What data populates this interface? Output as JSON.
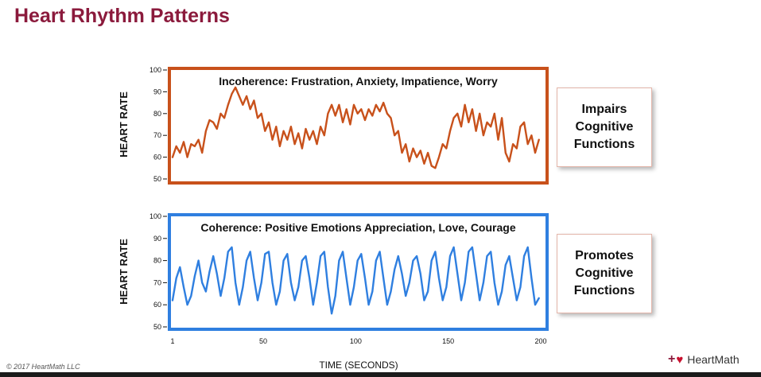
{
  "page": {
    "title": "Heart Rhythm Patterns",
    "copyright": "© 2017 HeartMath LLC",
    "brand": {
      "plus": "+",
      "name": "HeartMath"
    },
    "colors": {
      "title": "#8b1a3c",
      "incoherence": "#c8511b",
      "coherence": "#2f7fe0"
    }
  },
  "callouts": {
    "incoherence": [
      "Impairs",
      "Cognitive",
      "Functions"
    ],
    "coherence": [
      "Promotes",
      "Cognitive",
      "Functions"
    ]
  },
  "chart_data": [
    {
      "type": "line",
      "title": "Incoherence: Frustration, Anxiety, Impatience, Worry",
      "ylabel": "HEART RATE",
      "xlabel": "",
      "ylim": [
        50,
        100
      ],
      "xlim": [
        1,
        200
      ],
      "yticks": [
        "100",
        "90",
        "80",
        "70",
        "60",
        "50"
      ],
      "xticks": [],
      "grid": false,
      "series": [
        {
          "x": [
            1,
            3,
            5,
            7,
            9,
            11,
            13,
            15,
            17,
            19,
            21,
            23,
            25,
            27,
            29,
            31,
            33,
            35,
            37,
            39,
            41,
            43,
            45,
            47,
            49,
            51,
            53,
            55,
            57,
            59,
            61,
            63,
            65,
            67,
            69,
            71,
            73,
            75,
            77,
            79,
            81,
            83,
            85,
            87,
            89,
            91,
            93,
            95,
            97,
            99,
            101,
            103,
            105,
            107,
            109,
            111,
            113,
            115,
            117,
            119,
            121,
            123,
            125,
            127,
            129,
            131,
            133,
            135,
            137,
            139,
            141,
            143,
            145,
            147,
            149,
            151,
            153,
            155,
            157,
            159,
            161,
            163,
            165,
            167,
            169,
            171,
            173,
            175,
            177,
            179,
            181,
            183,
            185,
            187,
            189,
            191,
            193,
            195,
            197,
            199
          ],
          "values": [
            60,
            65,
            62,
            67,
            60,
            66,
            65,
            68,
            62,
            72,
            77,
            76,
            73,
            80,
            78,
            84,
            89,
            92,
            88,
            84,
            88,
            82,
            86,
            78,
            80,
            72,
            76,
            68,
            74,
            65,
            72,
            68,
            74,
            66,
            71,
            64,
            73,
            68,
            72,
            66,
            74,
            70,
            80,
            84,
            79,
            84,
            76,
            82,
            75,
            84,
            80,
            82,
            77,
            82,
            79,
            84,
            81,
            85,
            80,
            78,
            70,
            72,
            62,
            66,
            58,
            64,
            60,
            63,
            57,
            62,
            56,
            55,
            60,
            66,
            64,
            72,
            78,
            80,
            74,
            84,
            76,
            82,
            72,
            80,
            70,
            76,
            74,
            80,
            68,
            78,
            62,
            58,
            66,
            64,
            74,
            76,
            66,
            70,
            62,
            68
          ]
        }
      ]
    },
    {
      "type": "line",
      "title": "Coherence: Positive Emotions Appreciation, Love, Courage",
      "ylabel": "HEART RATE",
      "xlabel": "TIME (SECONDS)",
      "ylim": [
        50,
        100
      ],
      "xlim": [
        1,
        200
      ],
      "yticks": [
        "100",
        "90",
        "80",
        "70",
        "60",
        "50"
      ],
      "xticks": [
        "1",
        "50",
        "100",
        "150",
        "200"
      ],
      "grid": false,
      "series": [
        {
          "x": [
            1,
            3,
            5,
            7,
            9,
            11,
            13,
            15,
            17,
            19,
            21,
            23,
            25,
            27,
            29,
            31,
            33,
            35,
            37,
            39,
            41,
            43,
            45,
            47,
            49,
            51,
            53,
            55,
            57,
            59,
            61,
            63,
            65,
            67,
            69,
            71,
            73,
            75,
            77,
            79,
            81,
            83,
            85,
            87,
            89,
            91,
            93,
            95,
            97,
            99,
            101,
            103,
            105,
            107,
            109,
            111,
            113,
            115,
            117,
            119,
            121,
            123,
            125,
            127,
            129,
            131,
            133,
            135,
            137,
            139,
            141,
            143,
            145,
            147,
            149,
            151,
            153,
            155,
            157,
            159,
            161,
            163,
            165,
            167,
            169,
            171,
            173,
            175,
            177,
            179,
            181,
            183,
            185,
            187,
            189,
            191,
            193,
            195,
            197,
            199
          ],
          "values": [
            62,
            72,
            77,
            68,
            60,
            64,
            73,
            80,
            70,
            66,
            75,
            82,
            74,
            64,
            72,
            84,
            86,
            70,
            60,
            68,
            80,
            84,
            72,
            62,
            70,
            83,
            84,
            70,
            60,
            66,
            80,
            83,
            70,
            62,
            68,
            80,
            82,
            72,
            60,
            70,
            82,
            84,
            68,
            56,
            64,
            80,
            84,
            72,
            60,
            68,
            80,
            83,
            72,
            60,
            66,
            80,
            84,
            72,
            60,
            66,
            76,
            82,
            74,
            64,
            70,
            80,
            82,
            74,
            62,
            66,
            80,
            84,
            72,
            62,
            68,
            82,
            86,
            74,
            62,
            70,
            84,
            86,
            74,
            62,
            70,
            82,
            84,
            70,
            60,
            66,
            78,
            82,
            72,
            62,
            68,
            82,
            86,
            72,
            60,
            63
          ]
        }
      ]
    }
  ]
}
